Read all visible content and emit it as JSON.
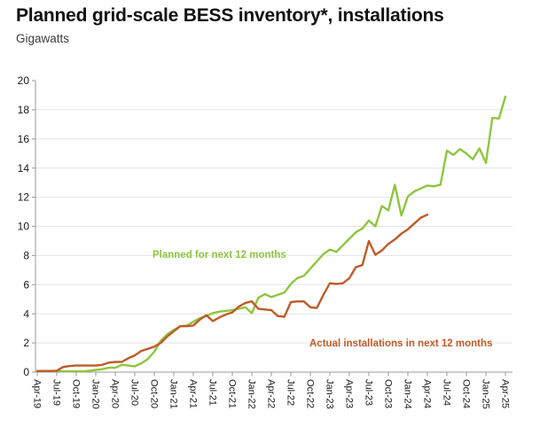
{
  "header": {
    "title": "Planned grid-scale BESS inventory*, installations",
    "subtitle": "Gigawatts"
  },
  "chart_data": {
    "type": "line",
    "title": "Planned grid-scale BESS inventory*, installations",
    "ylabel": "Gigawatts",
    "ylim": [
      0,
      20
    ],
    "yticks": [
      0,
      2,
      4,
      6,
      8,
      10,
      12,
      14,
      16,
      18,
      20
    ],
    "grid": "horizontal",
    "legend_position": "inline-labels-on-chart",
    "x_tick_step": 3,
    "x": [
      "Apr-19",
      "May-19",
      "Jun-19",
      "Jul-19",
      "Aug-19",
      "Sep-19",
      "Oct-19",
      "Nov-19",
      "Dec-19",
      "Jan-20",
      "Feb-20",
      "Mar-20",
      "Apr-20",
      "May-20",
      "Jun-20",
      "Jul-20",
      "Aug-20",
      "Sep-20",
      "Oct-20",
      "Nov-20",
      "Dec-20",
      "Jan-21",
      "Feb-21",
      "Mar-21",
      "Apr-21",
      "May-21",
      "Jun-21",
      "Jul-21",
      "Aug-21",
      "Sep-21",
      "Oct-21",
      "Nov-21",
      "Dec-21",
      "Jan-22",
      "Feb-22",
      "Mar-22",
      "Apr-22",
      "May-22",
      "Jun-22",
      "Jul-22",
      "Aug-22",
      "Sep-22",
      "Oct-22",
      "Nov-22",
      "Dec-22",
      "Jan-23",
      "Feb-23",
      "Mar-23",
      "Apr-23",
      "May-23",
      "Jun-23",
      "Jul-23",
      "Aug-23",
      "Sep-23",
      "Oct-23",
      "Nov-23",
      "Dec-23",
      "Jan-24",
      "Feb-24",
      "Mar-24",
      "Apr-24",
      "May-24",
      "Jun-24",
      "Jul-24",
      "Aug-24",
      "Sep-24",
      "Oct-24",
      "Nov-24",
      "Dec-24",
      "Jan-25",
      "Feb-25",
      "Mar-25",
      "Apr-25"
    ],
    "series": [
      {
        "name": "Planned for next 12 months",
        "color": "#8dc63f",
        "values": [
          0.08,
          0.08,
          0.08,
          0.08,
          0.05,
          0.05,
          0.05,
          0.05,
          0.1,
          0.15,
          0.2,
          0.3,
          0.3,
          0.5,
          0.45,
          0.4,
          0.6,
          0.9,
          1.4,
          2.15,
          2.6,
          2.9,
          3.15,
          3.2,
          3.45,
          3.7,
          3.85,
          4.05,
          4.15,
          4.2,
          4.25,
          4.35,
          4.45,
          4.05,
          5.1,
          5.35,
          5.15,
          5.3,
          5.45,
          6.05,
          6.45,
          6.6,
          7.1,
          7.6,
          8.1,
          8.4,
          8.25,
          8.7,
          9.15,
          9.6,
          9.85,
          10.4,
          10.0,
          11.4,
          11.1,
          12.85,
          10.75,
          12.05,
          12.4,
          12.6,
          12.8,
          12.75,
          12.85,
          15.2,
          14.9,
          15.3,
          15.0,
          14.6,
          15.35,
          14.35,
          17.45,
          17.4,
          18.9
        ]
      },
      {
        "name": "Actual installations in next 12 months",
        "color": "#bf5b28",
        "values": [
          0.08,
          0.08,
          0.08,
          0.1,
          0.35,
          0.42,
          0.45,
          0.45,
          0.45,
          0.45,
          0.5,
          0.65,
          0.7,
          0.7,
          0.95,
          1.15,
          1.45,
          1.6,
          1.75,
          2.0,
          2.45,
          2.8,
          3.15,
          3.15,
          3.2,
          3.6,
          3.9,
          3.5,
          3.75,
          3.95,
          4.1,
          4.5,
          4.75,
          4.85,
          4.35,
          4.3,
          4.25,
          3.85,
          3.8,
          4.8,
          4.85,
          4.85,
          4.45,
          4.4,
          5.3,
          6.1,
          6.05,
          6.1,
          6.45,
          7.2,
          7.35,
          9.0,
          8.05,
          8.35,
          8.8,
          9.1,
          9.5,
          9.8,
          10.2,
          10.6,
          10.8
        ]
      }
    ]
  }
}
